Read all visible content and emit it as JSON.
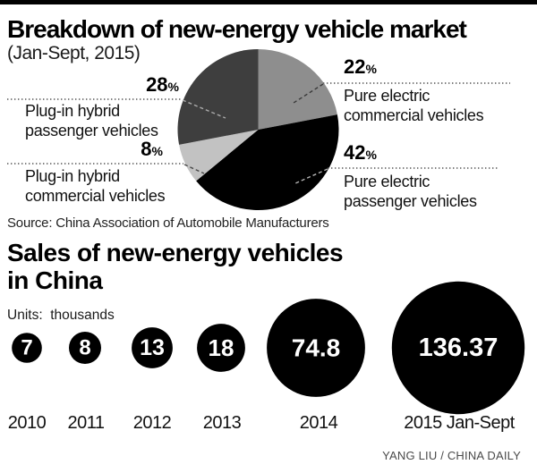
{
  "pie_section": {
    "title": "Breakdown of new-energy vehicle market",
    "subtitle": "(Jan-Sept, 2015)",
    "source": "Source: China Association of Automobile Manufacturers",
    "percent_sign": "%"
  },
  "sales_section": {
    "title_line1": "Sales of new-energy vehicles",
    "title_line2": "in China",
    "units_label": "Units:  thousands"
  },
  "credit": "YANG LIU / CHINA DAILY",
  "colors": {
    "pure_electric_commercial": "#8e8e8e",
    "pure_electric_passenger": "#000000",
    "plugin_hybrid_commercial": "#c2c2c2",
    "plugin_hybrid_passenger": "#3e3e3e",
    "bubble": "#000000",
    "bubble_text": "#ffffff",
    "leader_line": "#555555"
  },
  "chart_data": [
    {
      "type": "pie",
      "title": "Breakdown of new-energy vehicle market (Jan-Sept, 2015)",
      "start_angle_deg": 0,
      "direction": "clockwise",
      "slices": [
        {
          "label": "Pure electric commercial vehicles",
          "value": 22,
          "color": "#8e8e8e"
        },
        {
          "label": "Pure electric passenger vehicles",
          "value": 42,
          "color": "#000000"
        },
        {
          "label": "Plug-in hybrid commercial vehicles",
          "value": 8,
          "color": "#c2c2c2"
        },
        {
          "label": "Plug-in hybrid passenger vehicles",
          "value": 28,
          "color": "#3e3e3e"
        }
      ]
    },
    {
      "type": "bubble",
      "title": "Sales of new-energy vehicles in China",
      "units": "thousands",
      "categories": [
        "2010",
        "2011",
        "2012",
        "2013",
        "2014",
        "2015 Jan-Sept"
      ],
      "values": [
        7,
        8,
        13,
        18,
        74.8,
        136.37
      ]
    }
  ]
}
